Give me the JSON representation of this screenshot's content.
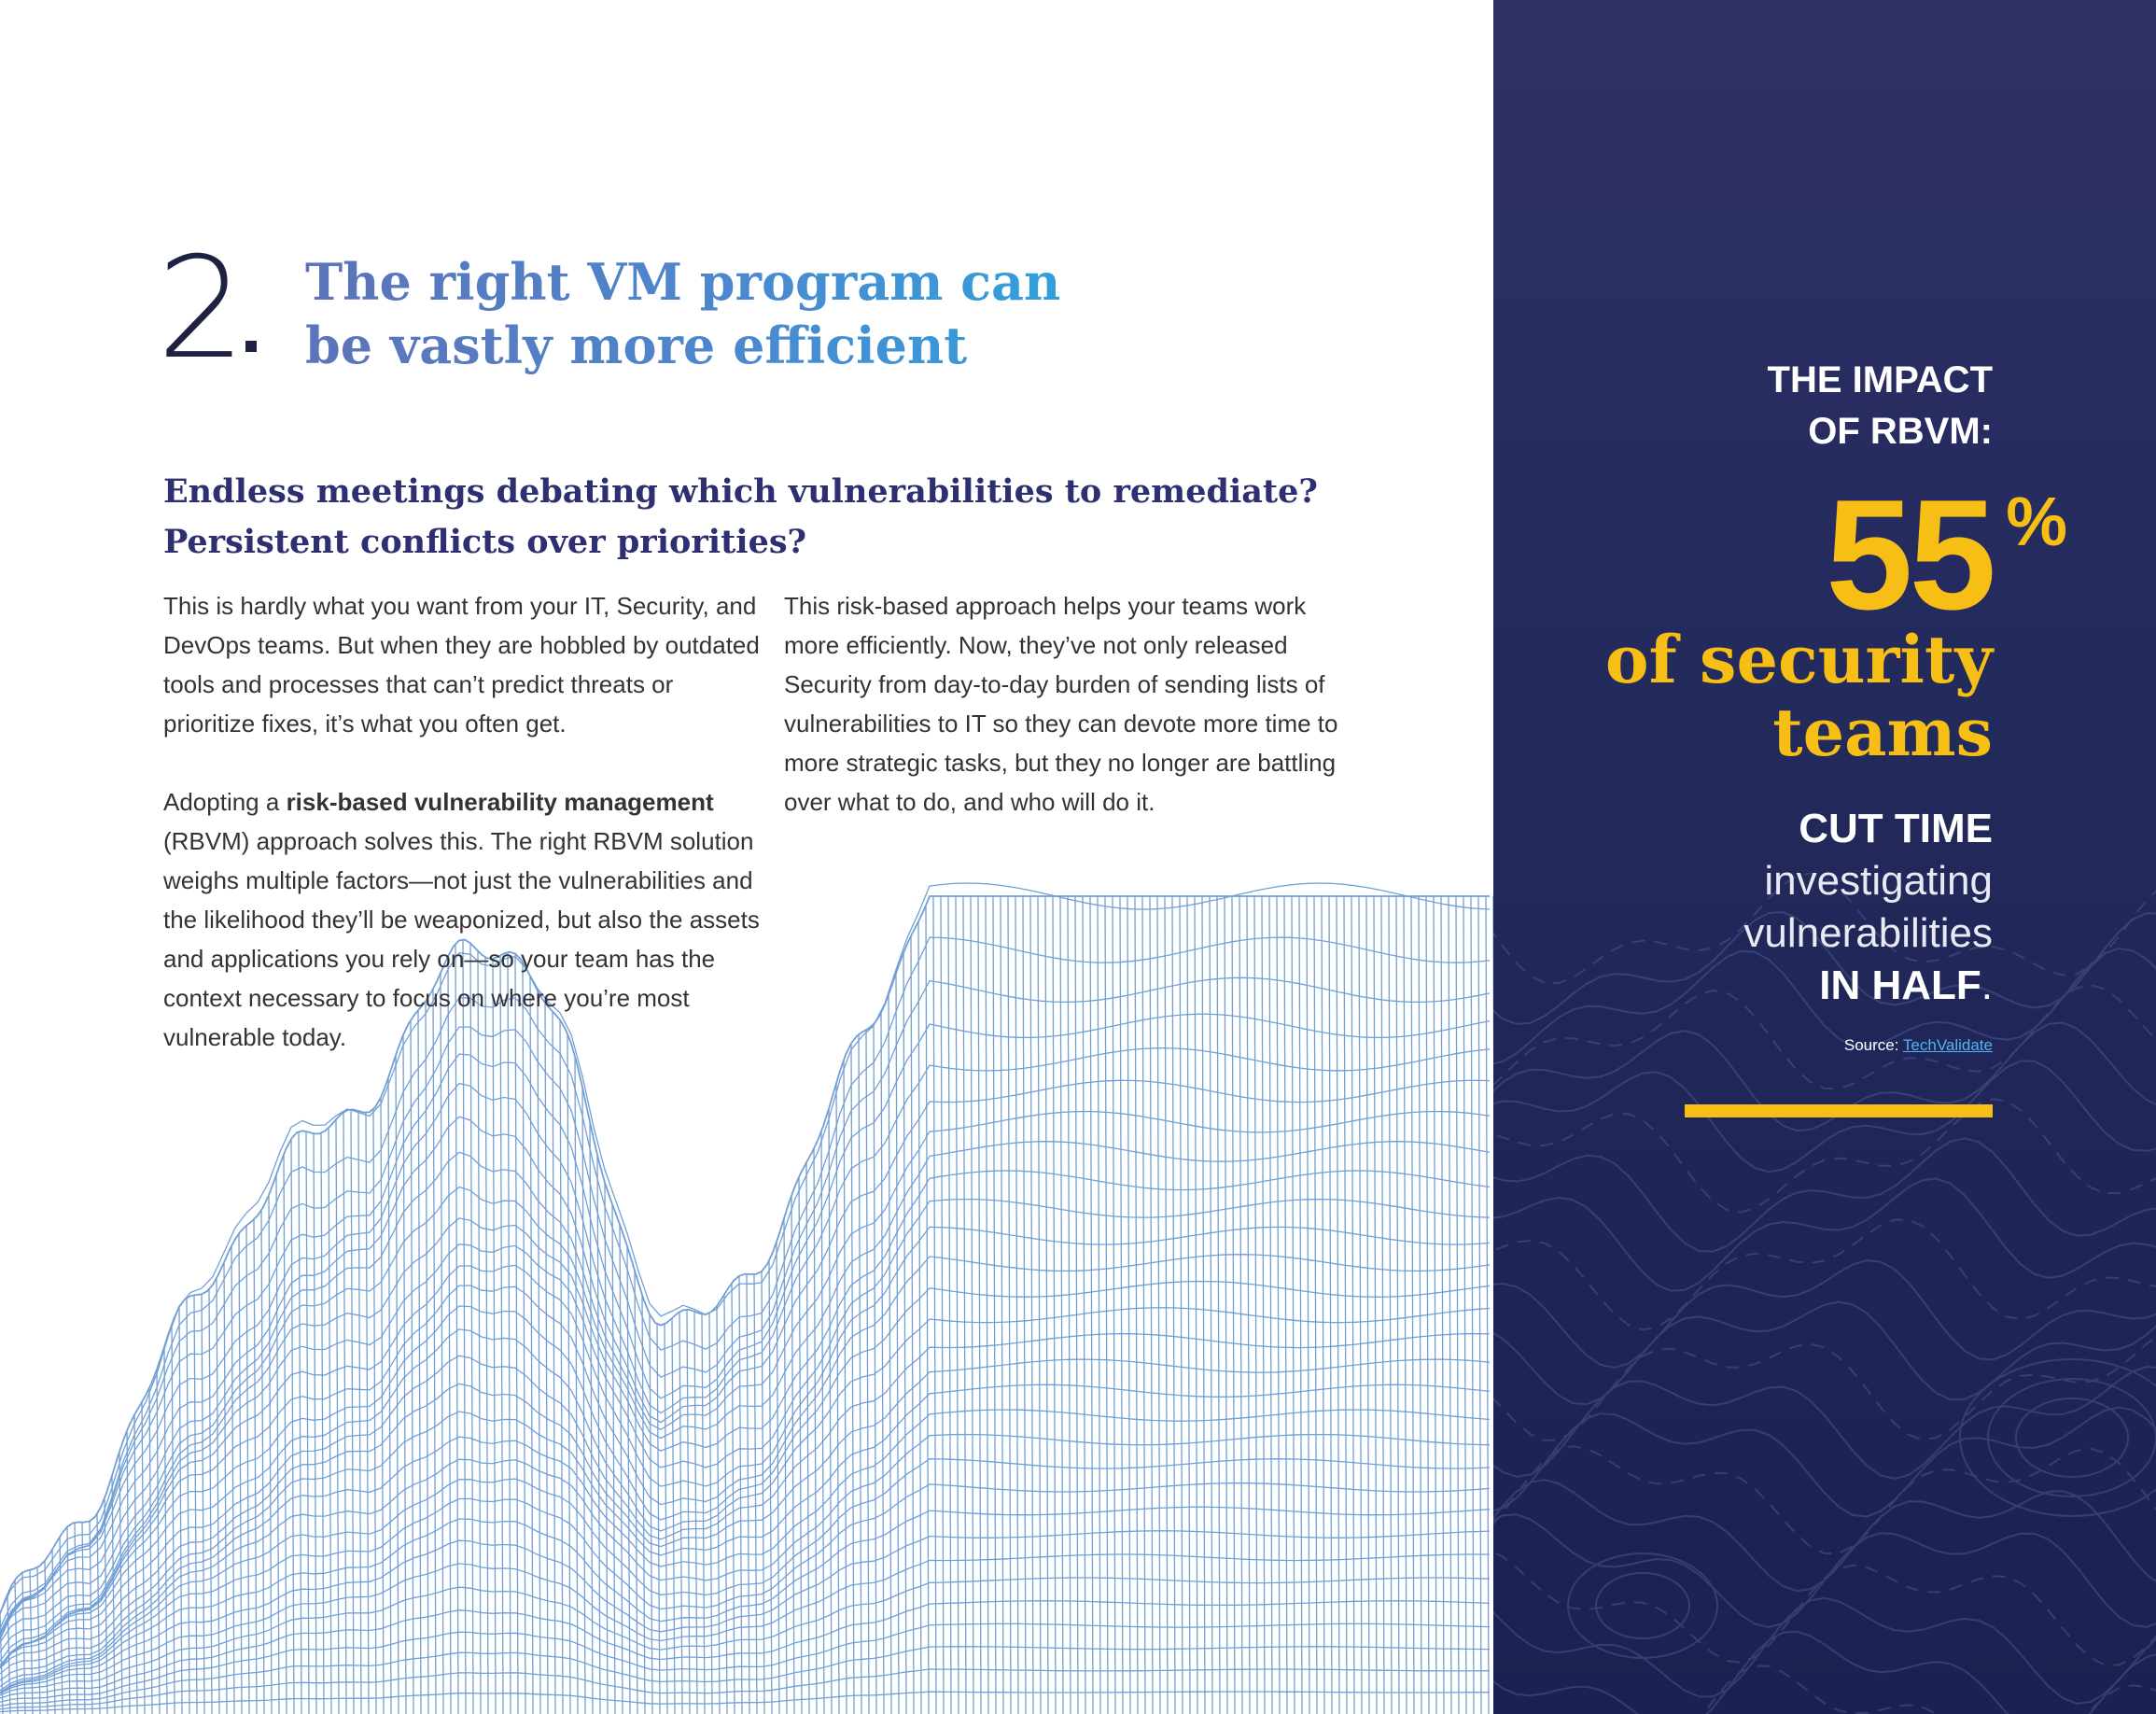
{
  "section": {
    "number": "2",
    "title_line1": "The right VM program can",
    "title_line2": "be vastly more efficient"
  },
  "subheading": {
    "line1": "Endless meetings debating which vulnerabilities to remediate?",
    "line2": "Persistent conflicts over priorities?"
  },
  "left_column": {
    "p1": "This is hardly what you want from your IT, Security, and DevOps teams. But when they are hobbled by outdated tools and processes that can’t predict threats or prioritize fixes, it’s what you often get.",
    "p2_prefix": "Adopting a ",
    "p2_bold": "risk-based vulnerability management",
    "p2_suffix": " (RBVM) approach solves this. The right RBVM solution weighs multiple factors—not just the vulnerabilities and the likelihood they’ll be weaponized, but also the assets and applications you rely on—so your team has the context necessary to focus on where you’re most vulnerable today."
  },
  "right_column": {
    "p1": "This risk-based approach helps your teams work more efficiently. Now, they’ve not only released Security from day-to-day burden of sending lists of vulnerabilities to IT so they can devote more time to more strategic tasks, but they no longer are battling over what to do, and who will do it."
  },
  "sidebar": {
    "heading_line1": "THE IMPACT",
    "heading_line2": "OF RBVM:",
    "stat_value": "55",
    "stat_unit": "%",
    "stat_label_line1": "of security",
    "stat_label_line2": "teams",
    "claim_bold1": "CUT TIME",
    "claim_light1": "investigating",
    "claim_light2": "vulnerabilities",
    "claim_bold2": "IN HALF",
    "claim_period": ".",
    "source_label": "Source: ",
    "source_link": "TechValidate"
  },
  "colors": {
    "accent_yellow": "#f7bf16",
    "navy": "#232a5c",
    "title_blue": "#4a8ad0",
    "heading_navy": "#2e2f70",
    "mesh_blue": "#5a8fd0"
  }
}
